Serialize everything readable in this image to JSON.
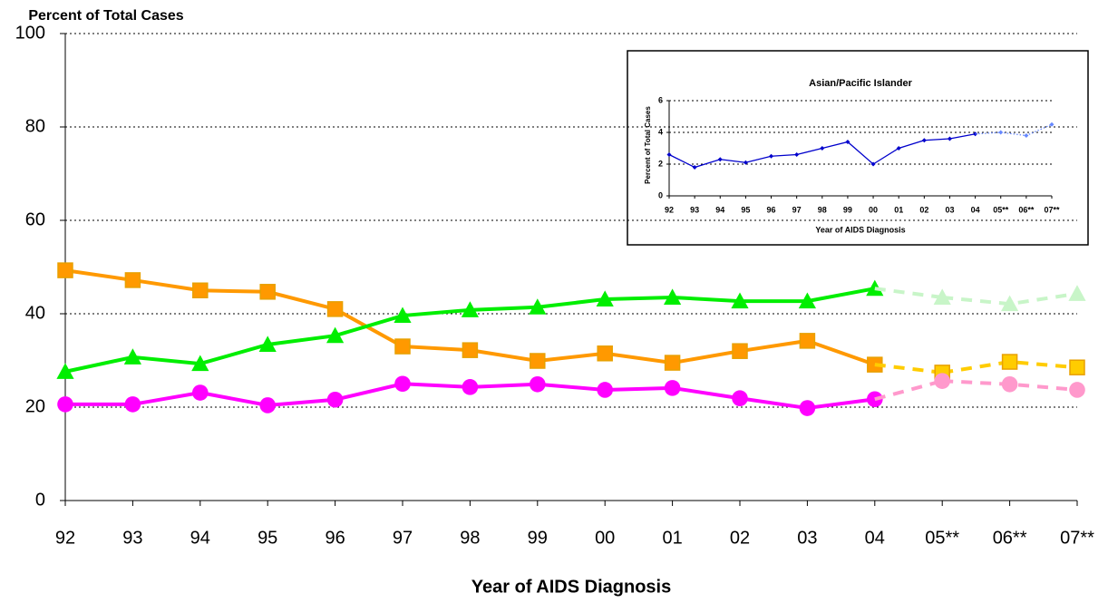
{
  "chart_data": [
    {
      "type": "line",
      "ylabel": "Percent of Total Cases",
      "xlabel": "Year of AIDS Diagnosis",
      "categories": [
        "92",
        "93",
        "94",
        "95",
        "96",
        "97",
        "98",
        "99",
        "00",
        "01",
        "02",
        "03",
        "04",
        "05**",
        "06**",
        "07**"
      ],
      "ylim": [
        0,
        100
      ],
      "yticks": [
        0,
        20,
        40,
        60,
        80,
        100
      ],
      "grid": true,
      "series": [
        {
          "color": "#ff9900",
          "marker": "square",
          "dash": false,
          "values": [
            49.3,
            47.2,
            45.0,
            44.7,
            41.0,
            33.0,
            32.2,
            29.9,
            31.5,
            29.5,
            32.0,
            34.2,
            29.1,
            null,
            null,
            null
          ]
        },
        {
          "color": "#ffcc00",
          "marker": "square",
          "dash": true,
          "values": [
            null,
            null,
            null,
            null,
            null,
            null,
            null,
            null,
            null,
            null,
            null,
            null,
            null,
            27.4,
            29.7,
            28.5
          ]
        },
        {
          "color": "#00ee00",
          "marker": "triangle",
          "dash": false,
          "values": [
            27.6,
            30.7,
            29.3,
            33.4,
            35.3,
            39.6,
            40.8,
            41.4,
            43.1,
            43.5,
            42.7,
            42.7,
            45.4,
            null,
            null,
            null
          ]
        },
        {
          "color": "#c8f5c8",
          "marker": "triangle",
          "dash": true,
          "values": [
            null,
            null,
            null,
            null,
            null,
            null,
            null,
            null,
            null,
            null,
            null,
            null,
            null,
            43.5,
            42.1,
            44.3
          ]
        },
        {
          "color": "#ff00ff",
          "marker": "circle",
          "dash": false,
          "values": [
            20.6,
            20.6,
            23.1,
            20.4,
            21.6,
            25.0,
            24.3,
            24.9,
            23.7,
            24.1,
            21.9,
            19.8,
            21.7,
            null,
            null,
            null
          ]
        },
        {
          "color": "#ff99cc",
          "marker": "circle",
          "dash": true,
          "values": [
            null,
            null,
            null,
            null,
            null,
            null,
            null,
            null,
            null,
            null,
            null,
            null,
            null,
            25.6,
            24.9,
            23.7
          ]
        }
      ]
    },
    {
      "type": "line",
      "title": "Asian/Pacific Islander",
      "ylabel": "Percent of Total Cases",
      "xlabel": "Year of AIDS Diagnosis",
      "categories": [
        "92",
        "93",
        "94",
        "95",
        "96",
        "97",
        "98",
        "99",
        "00",
        "01",
        "02",
        "03",
        "04",
        "05**",
        "06**",
        "07**"
      ],
      "ylim": [
        0,
        6
      ],
      "yticks": [
        0,
        2,
        4,
        6
      ],
      "grid": true,
      "series": [
        {
          "color": "#0000cc",
          "marker": "diamond",
          "dash": false,
          "values": [
            2.6,
            1.8,
            2.3,
            2.1,
            2.5,
            2.6,
            3.0,
            3.4,
            2.0,
            3.0,
            3.5,
            3.6,
            3.9,
            null,
            null,
            null
          ]
        },
        {
          "color": "#6688ff",
          "marker": "diamond",
          "dash": true,
          "values": [
            null,
            null,
            null,
            null,
            null,
            null,
            null,
            null,
            null,
            null,
            null,
            null,
            null,
            4.0,
            3.8,
            4.5
          ]
        }
      ]
    }
  ]
}
